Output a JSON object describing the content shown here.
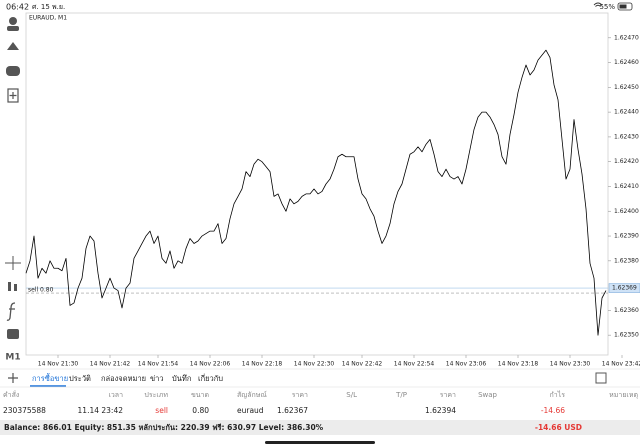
{
  "status_bar": {
    "time": "06:42",
    "date": "ศ. 15 พ.ย.",
    "battery": "55%"
  },
  "chart_data": {
    "type": "line",
    "title": "EURAUD, M1",
    "categories": [
      null,
      null,
      null,
      null,
      null,
      null,
      null,
      null,
      "14 Nov 21:30",
      null,
      null,
      null,
      null,
      null,
      null,
      null,
      null,
      null,
      null,
      null,
      null,
      "14 Nov 21:42",
      null,
      null,
      null,
      null,
      null,
      null,
      null,
      null,
      null,
      null,
      null,
      "14 Nov 21:54",
      null,
      null,
      null,
      null,
      null,
      null,
      null,
      null,
      null,
      null,
      null,
      null,
      "14 Nov 22:06",
      null,
      null,
      null,
      null,
      null,
      null,
      null,
      null,
      null,
      null,
      null,
      null,
      "14 Nov 22:18",
      null,
      null,
      null,
      null,
      null,
      null,
      null,
      null,
      null,
      null,
      null,
      null,
      "14 Nov 22:30",
      null,
      null,
      null,
      null,
      null,
      null,
      null,
      null,
      null,
      null,
      null,
      "14 Nov 22:42",
      null,
      null,
      null,
      null,
      null,
      null,
      null,
      null,
      null,
      null,
      null,
      null,
      "14 Nov 22:54",
      null,
      null,
      null,
      null,
      null,
      null,
      null,
      null,
      null,
      null,
      null,
      null,
      "14 Nov 23:06",
      null,
      null,
      null,
      null,
      null,
      null,
      null,
      null,
      null,
      null,
      null,
      null,
      "14 Nov 23:18",
      null,
      null,
      null,
      null,
      null,
      null,
      null,
      null,
      null,
      null,
      null,
      null,
      "14 Nov 23:30",
      null,
      null,
      null,
      null,
      null,
      null,
      null,
      null,
      null,
      null,
      null,
      null,
      "14 Nov 23:42"
    ],
    "values": [
      1.62375,
      1.6238,
      1.6239,
      1.62373,
      1.62377,
      1.62375,
      1.6238,
      1.62377,
      1.62377,
      1.62376,
      1.62381,
      1.62362,
      1.62363,
      1.62369,
      1.62373,
      1.62385,
      1.6239,
      1.62388,
      1.62375,
      1.62365,
      1.62369,
      1.62373,
      1.62369,
      1.62368,
      1.62361,
      1.62369,
      1.62371,
      1.62381,
      1.62384,
      1.62387,
      1.6239,
      1.62392,
      1.62387,
      1.6239,
      1.62381,
      1.62379,
      1.62384,
      1.62377,
      1.6238,
      1.62379,
      1.62385,
      1.62389,
      1.62387,
      1.62388,
      1.6239,
      1.62391,
      1.62392,
      1.62392,
      1.62395,
      1.62387,
      1.62389,
      1.62397,
      1.62403,
      1.62406,
      1.62409,
      1.62416,
      1.62414,
      1.62419,
      1.62421,
      1.6242,
      1.62418,
      1.62416,
      1.62406,
      1.62407,
      1.62403,
      1.624,
      1.62405,
      1.62403,
      1.62404,
      1.62406,
      1.62407,
      1.62407,
      1.62409,
      1.62407,
      1.62408,
      1.62411,
      1.62413,
      1.62417,
      1.62422,
      1.62423,
      1.62422,
      1.62422,
      1.62422,
      1.62413,
      1.62407,
      1.62405,
      1.62401,
      1.62398,
      1.62392,
      1.62387,
      1.6239,
      1.62395,
      1.62403,
      1.62408,
      1.62411,
      1.62417,
      1.62423,
      1.62424,
      1.62426,
      1.62424,
      1.62427,
      1.62429,
      1.62423,
      1.62416,
      1.62414,
      1.62417,
      1.62414,
      1.62413,
      1.62414,
      1.62411,
      1.62417,
      1.62425,
      1.62433,
      1.62438,
      1.6244,
      1.6244,
      1.62438,
      1.62435,
      1.62431,
      1.62422,
      1.62419,
      1.62431,
      1.62439,
      1.62448,
      1.62454,
      1.62459,
      1.62455,
      1.62457,
      1.62461,
      1.62463,
      1.62465,
      1.62462,
      1.62451,
      1.62445,
      1.62429,
      1.62413,
      1.62417,
      1.62437,
      1.62425,
      1.62415,
      1.62401,
      1.62379,
      1.62373,
      1.6235,
      1.62365,
      1.62368,
      null,
      null,
      null,
      null
    ],
    "color": "#000000",
    "ylim": [
      1.62342,
      1.6248
    ],
    "yticks": [
      {
        "value": 1.6247,
        "label": "1.62470"
      },
      {
        "value": 1.6246,
        "label": "1.62460"
      },
      {
        "value": 1.6245,
        "label": "1.62450"
      },
      {
        "value": 1.6244,
        "label": "1.62440"
      },
      {
        "value": 1.6243,
        "label": "1.62430"
      },
      {
        "value": 1.6242,
        "label": "1.62420"
      },
      {
        "value": 1.6241,
        "label": "1.62410"
      },
      {
        "value": 1.624,
        "label": "1.62400"
      },
      {
        "value": 1.6239,
        "label": "1.62390"
      },
      {
        "value": 1.6238,
        "label": "1.62380"
      },
      {
        "value": 1.6236,
        "label": "1.62360"
      },
      {
        "value": 1.6235,
        "label": "1.62350"
      }
    ],
    "current_price": 1.62369,
    "order_line": {
      "label": "sell 0.80",
      "value": 1.62367
    },
    "grid": false
  },
  "toolbar": {
    "timeframe": "M1"
  },
  "tabs": [
    "การซื้อขาย",
    "ประวัติ",
    "กล่องจดหมาย",
    "ข่าว",
    "บันทึก",
    "เกี่ยวกับ"
  ],
  "table": {
    "columns": [
      "คำสั่ง",
      "เวลา",
      "ประเภท",
      "ขนาด",
      "สัญลักษณ์",
      "ราคา",
      "S/L",
      "T/P",
      "ราคา",
      "Swap",
      "กำไร",
      "หมายเหตุ"
    ],
    "rows": [
      {
        "order": "230375588",
        "time": "11.14 23:42",
        "type": "sell",
        "volume": "0.80",
        "symbol": "euraud",
        "open_price": "1.62367",
        "price": "1.62394",
        "profit": "-14.66"
      }
    ]
  },
  "account": {
    "summary": "Balance: 866.01 Equity: 851.35 หลักประกัน: 220.39 ฟรี: 630.97 Level: 386.30%",
    "profit": "-14.66 USD"
  }
}
